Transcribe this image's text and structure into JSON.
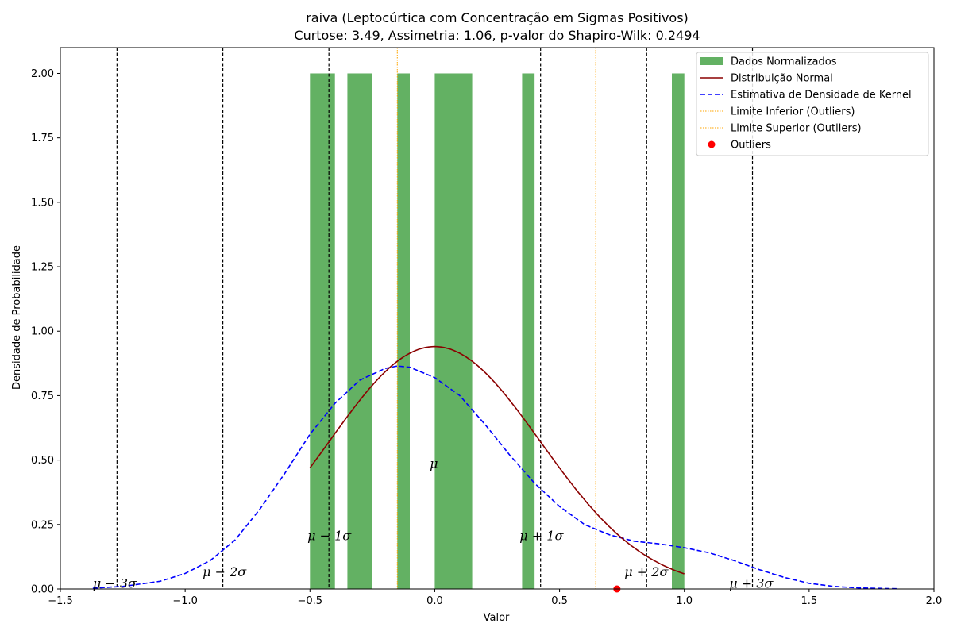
{
  "chart_data": {
    "type": "bar",
    "title": "raiva (Leptocúrtica com Concentração em Sigmas Positivos)",
    "subtitle": "Curtose: 3.49, Assimetria: 1.06, p-valor do Shapiro-Wilk: 0.2494",
    "xlabel": "Valor",
    "ylabel": "Densidade de Probabilidade",
    "xlim": [
      -1.5,
      2.0
    ],
    "ylim": [
      0.0,
      2.1
    ],
    "xticks": [
      -1.5,
      -1.0,
      -0.5,
      0.0,
      0.5,
      1.0,
      1.5,
      2.0
    ],
    "xtick_labels": [
      "−1.5",
      "−1.0",
      "−0.5",
      "0.0",
      "0.5",
      "1.0",
      "1.5",
      "2.0"
    ],
    "yticks": [
      0.0,
      0.25,
      0.5,
      0.75,
      1.0,
      1.25,
      1.5,
      1.75,
      2.0
    ],
    "ytick_labels": [
      "0.00",
      "0.25",
      "0.50",
      "0.75",
      "1.00",
      "1.25",
      "1.50",
      "1.75",
      "2.00"
    ],
    "grid": false,
    "legend_position": "top-right",
    "histogram": {
      "name": "Dados Normalizados",
      "color": "#63b163",
      "bins": [
        {
          "x0": -0.5,
          "x1": -0.4,
          "value": 2.0
        },
        {
          "x0": -0.35,
          "x1": -0.25,
          "value": 2.0
        },
        {
          "x0": -0.15,
          "x1": -0.1,
          "value": 2.0
        },
        {
          "x0": 0.0,
          "x1": 0.15,
          "value": 2.0
        },
        {
          "x0": 0.35,
          "x1": 0.4,
          "value": 2.0
        },
        {
          "x0": 0.95,
          "x1": 1.0,
          "value": 2.0
        }
      ]
    },
    "normal_curve": {
      "name": "Distribuição Normal",
      "color": "#8b0000",
      "mean": 0.0,
      "std": 0.4243,
      "x_range": [
        -0.5,
        1.0
      ]
    },
    "kde_curve": {
      "name": "Estimativa de Densidade de Kernel",
      "color": "#0000ff",
      "x": [
        -1.37,
        -1.25,
        -1.1,
        -1.0,
        -0.9,
        -0.8,
        -0.7,
        -0.6,
        -0.5,
        -0.4,
        -0.3,
        -0.2,
        -0.15,
        -0.1,
        0.0,
        0.1,
        0.2,
        0.3,
        0.4,
        0.5,
        0.6,
        0.7,
        0.8,
        0.9,
        1.0,
        1.1,
        1.2,
        1.3,
        1.4,
        1.5,
        1.6,
        1.7,
        1.85
      ],
      "y": [
        0.003,
        0.01,
        0.03,
        0.06,
        0.11,
        0.19,
        0.31,
        0.45,
        0.6,
        0.72,
        0.81,
        0.855,
        0.865,
        0.86,
        0.82,
        0.75,
        0.64,
        0.52,
        0.41,
        0.32,
        0.25,
        0.21,
        0.185,
        0.175,
        0.16,
        0.14,
        0.11,
        0.075,
        0.045,
        0.022,
        0.01,
        0.004,
        0.001
      ]
    },
    "outlier_limits": [
      {
        "name": "Limite Inferior (Outliers)",
        "x": -0.15,
        "color": "#ffa500"
      },
      {
        "name": "Limite Superior (Outliers)",
        "x": 0.645,
        "color": "#ffa500"
      }
    ],
    "outliers": {
      "name": "Outliers",
      "color": "#ff0000",
      "points": [
        {
          "x": 0.73,
          "y": 0.0
        }
      ]
    },
    "sigma_lines": [
      {
        "label": "μ − 3σ",
        "x": -1.273,
        "label_y": 0.005,
        "label_x": -1.37
      },
      {
        "label": "μ − 2σ",
        "x": -0.849,
        "label_y": 0.05,
        "label_x": -0.93
      },
      {
        "label": "μ − 1σ",
        "x": -0.424,
        "label_y": 0.19,
        "label_x": -0.51
      },
      {
        "label": "μ",
        "x": 0.0,
        "label_y": 0.47,
        "label_x": -0.02,
        "no_line": true
      },
      {
        "label": "μ + 1σ",
        "x": 0.424,
        "label_y": 0.19,
        "label_x": 0.34
      },
      {
        "label": "μ + 2σ",
        "x": 0.849,
        "label_y": 0.05,
        "label_x": 0.76
      },
      {
        "label": "μ + 3σ",
        "x": 1.273,
        "label_y": 0.005,
        "label_x": 1.18
      }
    ],
    "legend": [
      {
        "label": "Dados Normalizados",
        "kind": "patch",
        "color": "#63b163"
      },
      {
        "label": "Distribuição Normal",
        "kind": "line",
        "color": "#8b0000",
        "dash": ""
      },
      {
        "label": "Estimativa de Densidade de Kernel",
        "kind": "line",
        "color": "#0000ff",
        "dash": "6,3"
      },
      {
        "label": "Limite Inferior (Outliers)",
        "kind": "line",
        "color": "#ffa500",
        "dash": "1.5,1.5"
      },
      {
        "label": "Limite Superior (Outliers)",
        "kind": "line",
        "color": "#ffa500",
        "dash": "1.5,1.5"
      },
      {
        "label": "Outliers",
        "kind": "dot",
        "color": "#ff0000"
      }
    ]
  }
}
